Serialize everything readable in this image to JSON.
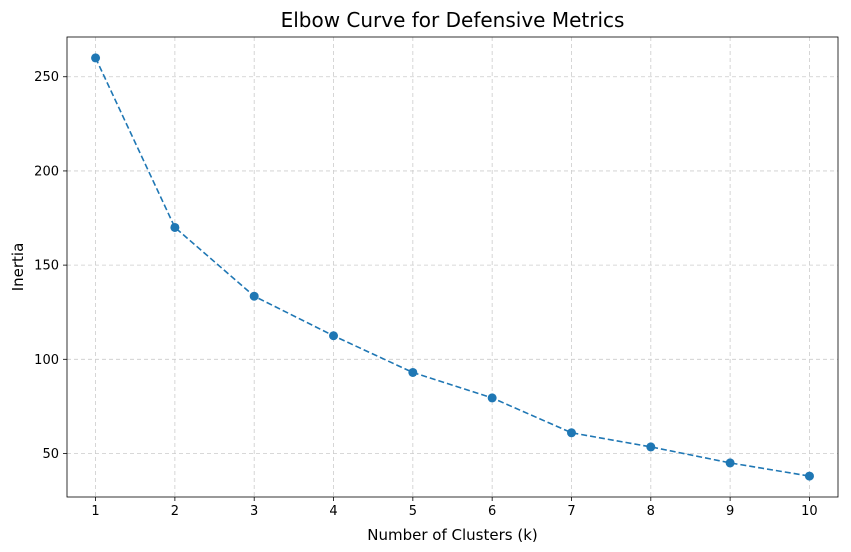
{
  "chart_data": {
    "type": "line",
    "title": "Elbow Curve for Defensive Metrics",
    "xlabel": "Number of Clusters (k)",
    "ylabel": "Inertia",
    "x": [
      1,
      2,
      3,
      4,
      5,
      6,
      7,
      8,
      9,
      10
    ],
    "series": [
      {
        "values": [
          260,
          170,
          133.5,
          112.5,
          93,
          79.5,
          61,
          53.5,
          45,
          38
        ]
      }
    ],
    "xticks": [
      "1",
      "2",
      "3",
      "4",
      "5",
      "6",
      "7",
      "8",
      "9",
      "10"
    ],
    "yticks": [
      "50",
      "100",
      "150",
      "200",
      "250"
    ],
    "ytick_values": [
      50,
      100,
      150,
      200,
      250
    ],
    "xlim": [
      0.64,
      10.36
    ],
    "ylim": [
      26.9,
      271.1
    ],
    "grid": true,
    "line_style": "dashed",
    "marker": "circle",
    "color": "#1f77b4",
    "grid_color": "#cccccc"
  }
}
